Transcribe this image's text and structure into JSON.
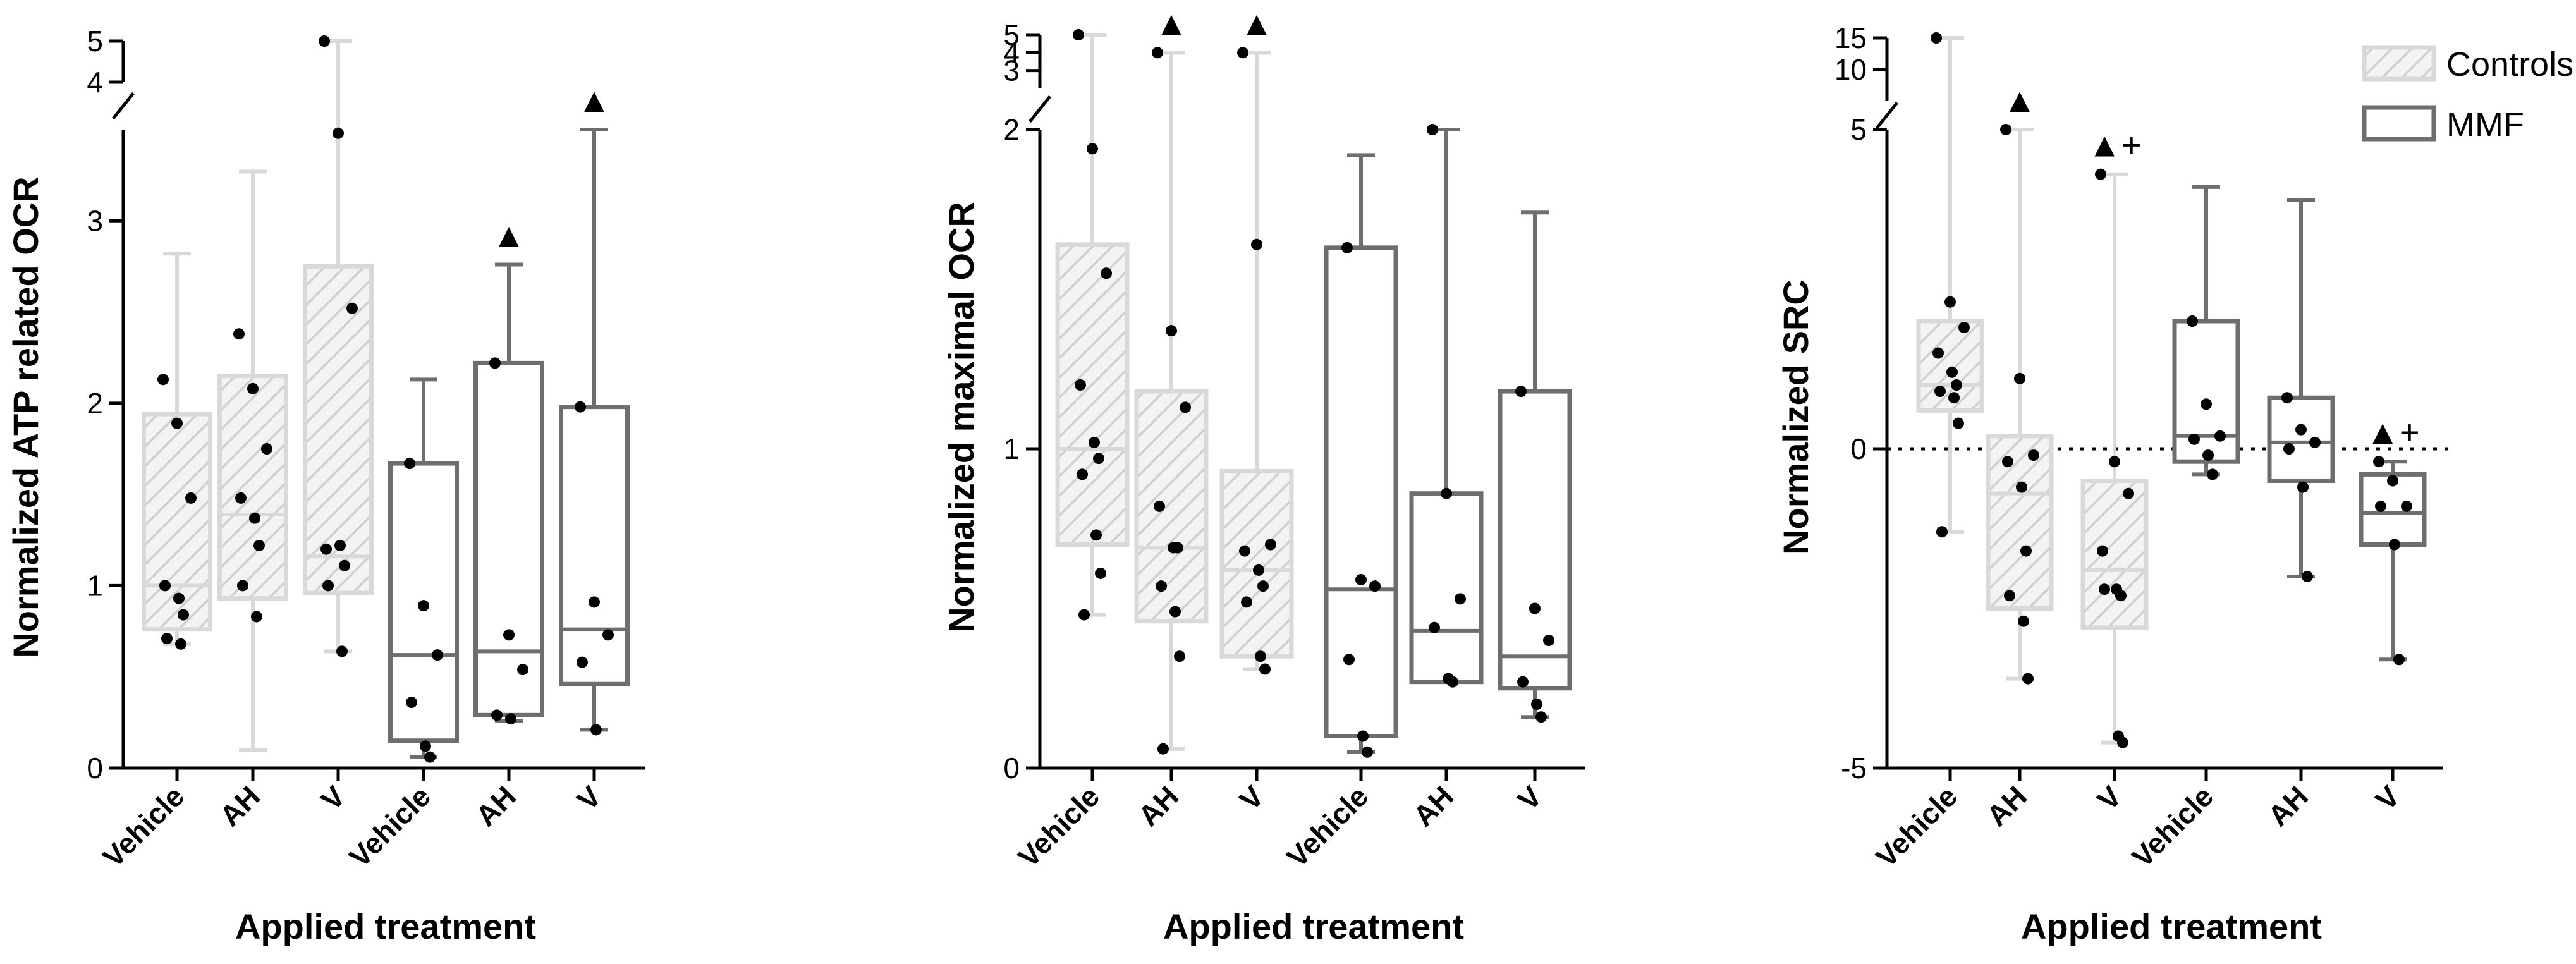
{
  "colors": {
    "control_stroke": "#d9d9d9",
    "control_hatch": "#d4d4d4",
    "mmf_stroke": "#6e6e6e",
    "point": "#000000",
    "axis": "#000000"
  },
  "legend": {
    "controls_label": "Controls",
    "mmf_label": "MMF"
  },
  "chart_data": [
    {
      "type": "boxplot",
      "ylabel": "Normalized ATP related OCR",
      "xlabel": "Applied treatment",
      "categories": [
        "Vehicle",
        "AH",
        "V",
        "Vehicle",
        "AH",
        "V"
      ],
      "y_axis_broken": true,
      "lower_range": [
        0,
        3.5
      ],
      "upper_range": [
        4,
        5
      ],
      "lower_ticks": [
        "0",
        "1",
        "2",
        "3"
      ],
      "upper_ticks": [
        "4",
        "5"
      ],
      "reference_line": null,
      "groups": [
        {
          "name": "Vehicle",
          "series": "Controls",
          "min": 0.68,
          "q1": 0.76,
          "median": 1.0,
          "q3": 1.94,
          "max": 2.82,
          "points": [
            2.13,
            1.89,
            1.48,
            1.0,
            0.93,
            0.84,
            0.71,
            0.68
          ],
          "significance": ""
        },
        {
          "name": "AH",
          "series": "Controls",
          "min": 0.1,
          "q1": 0.93,
          "median": 1.39,
          "q3": 2.15,
          "max": 3.27,
          "points": [
            2.38,
            2.08,
            1.75,
            1.48,
            1.37,
            1.22,
            1.0,
            0.83
          ],
          "significance": ""
        },
        {
          "name": "V",
          "series": "Controls",
          "min": 0.64,
          "q1": 0.96,
          "median": 1.16,
          "q3": 2.75,
          "max": 5.0,
          "points": [
            5.0,
            3.48,
            2.52,
            1.2,
            1.22,
            1.11,
            1.0,
            0.64
          ],
          "significance": ""
        },
        {
          "name": "Vehicle",
          "series": "MMF",
          "min": 0.06,
          "q1": 0.15,
          "median": 0.62,
          "q3": 1.67,
          "max": 2.13,
          "points": [
            1.67,
            0.89,
            0.62,
            0.36,
            0.12,
            0.06
          ],
          "significance": ""
        },
        {
          "name": "AH",
          "series": "MMF",
          "min": 0.26,
          "q1": 0.29,
          "median": 0.64,
          "q3": 2.22,
          "max": 2.76,
          "points": [
            2.22,
            0.73,
            0.54,
            0.29,
            0.27
          ],
          "significance": "▲"
        },
        {
          "name": "V",
          "series": "MMF",
          "min": 0.21,
          "q1": 0.46,
          "median": 0.76,
          "q3": 1.98,
          "max": 3.52,
          "points": [
            1.98,
            0.91,
            0.73,
            0.58,
            0.21
          ],
          "significance": "▲"
        }
      ]
    },
    {
      "type": "boxplot",
      "ylabel": "Normalized maximal OCR",
      "xlabel": "Applied treatment",
      "categories": [
        "Vehicle",
        "AH",
        "V",
        "Vehicle",
        "AH",
        "V"
      ],
      "y_axis_broken": true,
      "lower_range": [
        0,
        2
      ],
      "upper_range": [
        2,
        5
      ],
      "lower_ticks": [
        "0",
        "1",
        "2"
      ],
      "upper_ticks": [
        "2",
        "3",
        "4",
        "5"
      ],
      "reference_line": null,
      "groups": [
        {
          "name": "Vehicle",
          "series": "Controls",
          "min": 0.48,
          "q1": 0.7,
          "median": 1.0,
          "q3": 1.64,
          "max": 5.0,
          "points": [
            5.0,
            1.94,
            1.55,
            1.2,
            1.02,
            0.97,
            0.92,
            0.73,
            0.61,
            0.48
          ],
          "significance": ""
        },
        {
          "name": "AH",
          "series": "Controls",
          "min": 0.06,
          "q1": 0.46,
          "median": 0.69,
          "q3": 1.18,
          "max": 4.0,
          "points": [
            4.0,
            1.37,
            1.13,
            0.82,
            0.69,
            0.69,
            0.57,
            0.49,
            0.35,
            0.06
          ],
          "significance": "▲"
        },
        {
          "name": "V",
          "series": "Controls",
          "min": 0.31,
          "q1": 0.35,
          "median": 0.62,
          "q3": 0.93,
          "max": 4.0,
          "points": [
            4.0,
            1.64,
            0.7,
            0.68,
            0.62,
            0.57,
            0.52,
            0.35,
            0.31
          ],
          "significance": "▲"
        },
        {
          "name": "Vehicle",
          "series": "MMF",
          "min": 0.05,
          "q1": 0.1,
          "median": 0.56,
          "q3": 1.63,
          "max": 1.92,
          "points": [
            1.63,
            0.59,
            0.57,
            0.34,
            0.1,
            0.05
          ],
          "significance": ""
        },
        {
          "name": "AH",
          "series": "MMF",
          "min": 0.27,
          "q1": 0.27,
          "median": 0.43,
          "q3": 0.86,
          "max": 2.0,
          "points": [
            2.0,
            0.86,
            0.53,
            0.44,
            0.28,
            0.27
          ],
          "significance": ""
        },
        {
          "name": "V",
          "series": "MMF",
          "min": 0.16,
          "q1": 0.25,
          "median": 0.35,
          "q3": 1.18,
          "max": 1.74,
          "points": [
            1.18,
            0.5,
            0.4,
            0.27,
            0.2,
            0.16
          ],
          "significance": ""
        }
      ]
    },
    {
      "type": "boxplot",
      "ylabel": "Normalized SRC",
      "xlabel": "Applied treatment",
      "categories": [
        "Vehicle",
        "AH",
        "V",
        "Vehicle",
        "AH",
        "V"
      ],
      "y_axis_broken": true,
      "lower_range": [
        -5,
        5
      ],
      "upper_range": [
        5,
        15
      ],
      "lower_ticks": [
        "-5",
        "0",
        "5"
      ],
      "upper_ticks": [
        "5",
        "10",
        "15"
      ],
      "reference_line": 0,
      "groups": [
        {
          "name": "Vehicle",
          "series": "Controls",
          "min": -1.3,
          "q1": 0.6,
          "median": 1.0,
          "q3": 2.0,
          "max": 15.0,
          "points": [
            15.0,
            2.3,
            1.9,
            1.5,
            1.2,
            1.0,
            0.9,
            0.8,
            0.4,
            -1.3
          ],
          "significance": ""
        },
        {
          "name": "AH",
          "series": "Controls",
          "min": -3.6,
          "q1": -2.5,
          "median": -0.7,
          "q3": 0.2,
          "max": 5.0,
          "points": [
            5.0,
            1.1,
            -0.1,
            -0.2,
            -0.6,
            -1.6,
            -2.3,
            -2.7,
            -3.6
          ],
          "significance": "▲"
        },
        {
          "name": "V",
          "series": "Controls",
          "min": -4.6,
          "q1": -2.8,
          "median": -1.9,
          "q3": -0.5,
          "max": 4.3,
          "points": [
            4.3,
            -0.2,
            -0.7,
            -1.6,
            -2.2,
            -2.3,
            -2.2,
            -4.5,
            -4.6
          ],
          "significance": "▲+"
        },
        {
          "name": "Vehicle",
          "series": "MMF",
          "min": -0.4,
          "q1": -0.2,
          "median": 0.2,
          "q3": 2.0,
          "max": 4.1,
          "points": [
            2.0,
            0.7,
            0.2,
            0.15,
            -0.1,
            -0.4
          ],
          "significance": ""
        },
        {
          "name": "AH",
          "series": "MMF",
          "min": -2.0,
          "q1": -0.5,
          "median": 0.1,
          "q3": 0.8,
          "max": 3.9,
          "points": [
            0.8,
            0.3,
            0.1,
            0.0,
            -0.6,
            -2.0
          ],
          "significance": ""
        },
        {
          "name": "V",
          "series": "MMF",
          "min": -3.3,
          "q1": -1.5,
          "median": -1.0,
          "q3": -0.4,
          "max": -0.2,
          "points": [
            -0.2,
            -0.5,
            -0.9,
            -0.9,
            -1.5,
            -3.3
          ],
          "significance": "▲+"
        }
      ]
    }
  ]
}
